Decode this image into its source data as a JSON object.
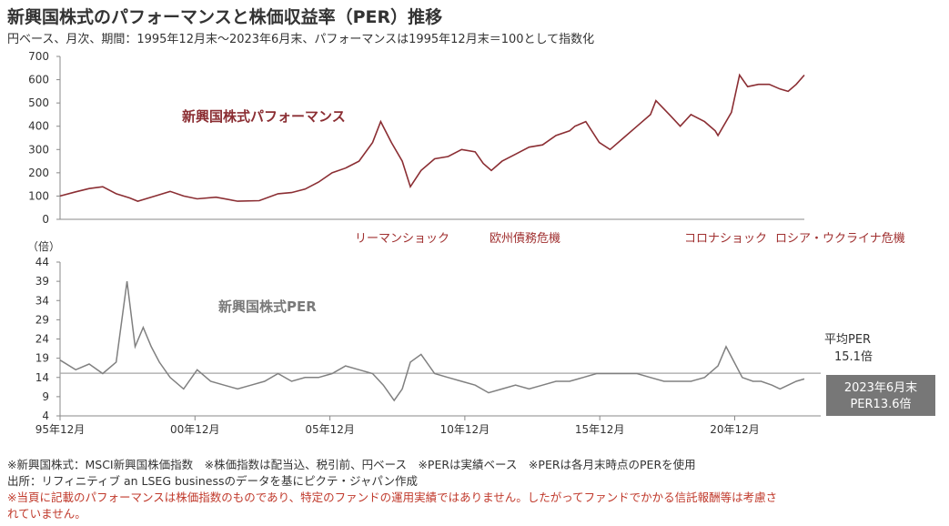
{
  "header": {
    "title": "新興国株式のパフォーマンスと株価収益率（PER）推移",
    "subtitle": "円ベース、月次、期間：1995年12月末～2023年6月末、パフォーマンスは1995年12月末＝100として指数化"
  },
  "colors": {
    "performance": "#8b2e33",
    "per": "#808080",
    "avg": "#a6a6a6",
    "event": "#a03030",
    "box": "#777777"
  },
  "chart_data": [
    {
      "type": "line",
      "title": "",
      "series_label": "新興国株式パフォーマンス",
      "ylim": [
        0,
        700
      ],
      "yticks": [
        0,
        100,
        200,
        300,
        400,
        500,
        600,
        700
      ],
      "events": [
        "リーマンショック",
        "欧州債務危機",
        "コロナショック",
        "ロシア・ウクライナ危機"
      ],
      "series": [
        {
          "name": "新興国株式パフォーマンス",
          "x": [
            1995.92,
            1996.5,
            1997.0,
            1997.5,
            1998.0,
            1998.5,
            1998.8,
            1999.5,
            2000.0,
            2000.5,
            2001.0,
            2001.7,
            2002.5,
            2003.3,
            2004.0,
            2004.5,
            2005.0,
            2005.5,
            2006.0,
            2006.5,
            2007.0,
            2007.5,
            2007.8,
            2008.2,
            2008.6,
            2008.9,
            2009.3,
            2009.8,
            2010.3,
            2010.8,
            2011.3,
            2011.6,
            2011.9,
            2012.3,
            2012.8,
            2013.3,
            2013.8,
            2014.3,
            2014.8,
            2015.0,
            2015.4,
            2015.9,
            2016.3,
            2016.8,
            2017.3,
            2017.8,
            2018.0,
            2018.5,
            2018.9,
            2019.3,
            2019.8,
            2020.2,
            2020.3,
            2020.8,
            2021.1,
            2021.4,
            2021.8,
            2022.2,
            2022.6,
            2022.9,
            2023.2,
            2023.5
          ],
          "y": [
            100,
            118,
            132,
            140,
            110,
            92,
            78,
            102,
            120,
            100,
            88,
            95,
            78,
            80,
            110,
            115,
            130,
            160,
            200,
            220,
            250,
            330,
            420,
            330,
            250,
            140,
            210,
            260,
            270,
            300,
            290,
            240,
            210,
            250,
            280,
            310,
            320,
            360,
            380,
            400,
            420,
            330,
            300,
            350,
            400,
            450,
            510,
            450,
            400,
            450,
            420,
            380,
            360,
            460,
            620,
            570,
            580,
            580,
            560,
            550,
            580,
            620
          ]
        }
      ]
    },
    {
      "type": "line",
      "title": "",
      "series_label": "新興国株式PER",
      "ylabel": "（倍）",
      "ylim": [
        4,
        44
      ],
      "yticks": [
        4,
        9,
        14,
        19,
        24,
        29,
        34,
        39,
        44
      ],
      "xticks": [
        "95年12月",
        "00年12月",
        "05年12月",
        "10年12月",
        "15年12月",
        "20年12月"
      ],
      "average": 15.1,
      "average_label": "平均PER",
      "average_value": "15.1倍",
      "latest_box": [
        "2023年6月末",
        "PER13.6倍"
      ],
      "series": [
        {
          "name": "新興国株式PER",
          "x": [
            1995.92,
            1996.5,
            1997.0,
            1997.5,
            1998.0,
            1998.4,
            1998.7,
            1999.0,
            1999.3,
            1999.6,
            2000.0,
            2000.5,
            2001.0,
            2001.5,
            2002.0,
            2002.5,
            2003.0,
            2003.5,
            2004.0,
            2004.5,
            2005.0,
            2005.5,
            2006.0,
            2006.5,
            2007.0,
            2007.5,
            2007.9,
            2008.3,
            2008.6,
            2008.9,
            2009.3,
            2009.8,
            2010.3,
            2010.8,
            2011.3,
            2011.8,
            2012.3,
            2012.8,
            2013.3,
            2013.8,
            2014.3,
            2014.8,
            2015.3,
            2015.8,
            2016.3,
            2016.8,
            2017.3,
            2017.8,
            2018.3,
            2018.8,
            2019.3,
            2019.8,
            2020.3,
            2020.6,
            2020.9,
            2021.2,
            2021.6,
            2021.9,
            2022.3,
            2022.6,
            2022.9,
            2023.2,
            2023.5
          ],
          "y": [
            18.5,
            16,
            17.5,
            15,
            18,
            39,
            22,
            27,
            22,
            18,
            14,
            11,
            16,
            13,
            12,
            11,
            12,
            13,
            15,
            13,
            14,
            14,
            15,
            17,
            16,
            15,
            12,
            8,
            11,
            18,
            20,
            15,
            14,
            13,
            12,
            10,
            11,
            12,
            11,
            12,
            13,
            13,
            14,
            15,
            15,
            15,
            15,
            14,
            13,
            13,
            13,
            14,
            17,
            22,
            18,
            14,
            13,
            13,
            12,
            11,
            12,
            13,
            13.6
          ]
        }
      ]
    }
  ],
  "notes": {
    "line1": "※新興国株式：MSCI新興国株価指数　※株価指数は配当込、税引前、円ベース　※PERは実績ベース　※PERは各月末時点のPERを使用",
    "line2": "出所：リフィニティブ an LSEG businessのデータを基にピクテ・ジャパン作成",
    "line3": "※当頁に記載のパフォーマンスは株価指数のものであり、特定のファンドの運用実績ではありません。したがってファンドでかかる信託報酬等は考慮さ",
    "line4": "れていません。"
  }
}
